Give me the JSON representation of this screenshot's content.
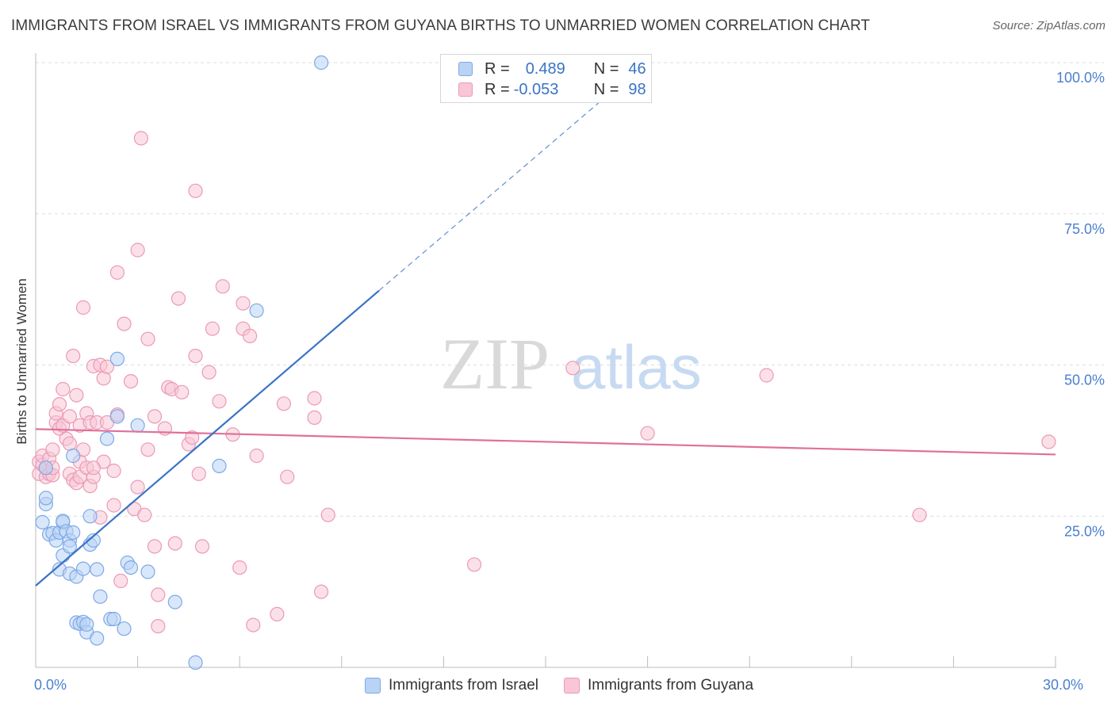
{
  "header": {
    "title": "IMMIGRANTS FROM ISRAEL VS IMMIGRANTS FROM GUYANA BIRTHS TO UNMARRIED WOMEN CORRELATION CHART",
    "source": "Source: ZipAtlas.com"
  },
  "watermark": {
    "zip": "ZIP",
    "atlas": "atlas"
  },
  "stats": {
    "israel": {
      "r_label": "R =",
      "r_value": "0.489",
      "n_label": "N =",
      "n_value": "46"
    },
    "guyana": {
      "r_label": "R =",
      "r_value": "-0.053",
      "n_label": "N =",
      "n_value": "98"
    }
  },
  "legend": {
    "israel": "Immigrants from Israel",
    "guyana": "Immigrants from Guyana"
  },
  "colors": {
    "israel_fill": "#b9d3f5",
    "israel_stroke": "#7ea9e6",
    "israel_line": "#3b73c7",
    "guyana_fill": "#f8c6d6",
    "guyana_stroke": "#ec9ab5",
    "guyana_line": "#e0709a",
    "tick_text": "#4a7fd0",
    "grid": "#dddddd"
  },
  "chart_data": {
    "type": "scatter",
    "title": "IMMIGRANTS FROM ISRAEL VS IMMIGRANTS FROM GUYANA BIRTHS TO UNMARRIED WOMEN CORRELATION CHART",
    "xlabel": "",
    "ylabel": "Births to Unmarried Women",
    "xlim": [
      0,
      30
    ],
    "ylim": [
      0,
      100
    ],
    "y_ticks": [
      {
        "value": 25,
        "label": "25.0%"
      },
      {
        "value": 50,
        "label": "50.0%"
      },
      {
        "value": 75,
        "label": "75.0%"
      },
      {
        "value": 100,
        "label": "100.0%"
      }
    ],
    "x_tick_labels": [
      {
        "value": 0,
        "label": "0.0%"
      },
      {
        "value": 30,
        "label": "30.0%"
      }
    ],
    "x_minor_ticks": [
      3,
      6,
      9,
      12,
      15,
      18,
      21,
      24,
      27,
      30
    ],
    "series": [
      {
        "name": "Immigrants from Israel",
        "r": 0.489,
        "n": 46,
        "trend": {
          "x0": 0,
          "y0": 13.5,
          "x1": 10.1,
          "y1": 62.3
        },
        "trend_dashed": {
          "x0": 10.1,
          "y0": 62.3,
          "x1": 16.8,
          "y1": 94.5
        },
        "points": [
          [
            0.2,
            24.0
          ],
          [
            0.3,
            27.0
          ],
          [
            0.3,
            28.0
          ],
          [
            0.4,
            22.0
          ],
          [
            0.5,
            22.2
          ],
          [
            0.6,
            21.0
          ],
          [
            0.7,
            16.2
          ],
          [
            0.7,
            22.3
          ],
          [
            0.8,
            24.0
          ],
          [
            0.8,
            24.2
          ],
          [
            0.8,
            18.5
          ],
          [
            0.9,
            22.5
          ],
          [
            1.0,
            21.0
          ],
          [
            1.0,
            15.5
          ],
          [
            1.0,
            20.0
          ],
          [
            1.1,
            35.0
          ],
          [
            1.1,
            22.3
          ],
          [
            1.2,
            15.0
          ],
          [
            1.2,
            7.4
          ],
          [
            1.3,
            7.2
          ],
          [
            1.4,
            7.5
          ],
          [
            1.4,
            16.3
          ],
          [
            1.5,
            5.8
          ],
          [
            1.5,
            7.1
          ],
          [
            1.6,
            25.0
          ],
          [
            1.6,
            20.3
          ],
          [
            1.7,
            21.0
          ],
          [
            1.8,
            4.8
          ],
          [
            1.8,
            16.2
          ],
          [
            1.9,
            11.7
          ],
          [
            2.1,
            37.8
          ],
          [
            2.2,
            8.0
          ],
          [
            2.3,
            8.0
          ],
          [
            2.4,
            51.0
          ],
          [
            2.4,
            41.5
          ],
          [
            2.6,
            6.4
          ],
          [
            2.7,
            17.3
          ],
          [
            2.8,
            16.5
          ],
          [
            3.0,
            40.0
          ],
          [
            3.3,
            15.8
          ],
          [
            4.1,
            10.8
          ],
          [
            4.7,
            0.8
          ],
          [
            5.4,
            33.3
          ],
          [
            6.5,
            59.0
          ],
          [
            8.4,
            100.0
          ],
          [
            0.3,
            33.0
          ]
        ]
      },
      {
        "name": "Immigrants from Guyana",
        "r": -0.053,
        "n": 98,
        "trend": {
          "x0": 0,
          "y0": 39.4,
          "x1": 30,
          "y1": 35.2
        },
        "points": [
          [
            0.1,
            34.0
          ],
          [
            0.1,
            32.0
          ],
          [
            0.2,
            33.5
          ],
          [
            0.2,
            35.0
          ],
          [
            0.3,
            31.5
          ],
          [
            0.3,
            33.0
          ],
          [
            0.4,
            32.0
          ],
          [
            0.4,
            34.5
          ],
          [
            0.5,
            31.8
          ],
          [
            0.5,
            33.0
          ],
          [
            0.5,
            36.0
          ],
          [
            0.6,
            40.5
          ],
          [
            0.6,
            42.0
          ],
          [
            0.7,
            39.5
          ],
          [
            0.7,
            43.5
          ],
          [
            0.8,
            40.0
          ],
          [
            0.8,
            46.0
          ],
          [
            0.9,
            37.8
          ],
          [
            1.0,
            41.5
          ],
          [
            1.0,
            37.0
          ],
          [
            1.0,
            32.0
          ],
          [
            1.1,
            51.5
          ],
          [
            1.1,
            31.0
          ],
          [
            1.2,
            30.5
          ],
          [
            1.2,
            45.0
          ],
          [
            1.3,
            34.0
          ],
          [
            1.3,
            40.0
          ],
          [
            1.3,
            31.5
          ],
          [
            1.4,
            36.0
          ],
          [
            1.4,
            59.5
          ],
          [
            1.5,
            42.0
          ],
          [
            1.5,
            33.0
          ],
          [
            1.6,
            40.5
          ],
          [
            1.6,
            30.0
          ],
          [
            1.7,
            49.8
          ],
          [
            1.7,
            31.5
          ],
          [
            1.8,
            40.5
          ],
          [
            1.9,
            50.0
          ],
          [
            1.9,
            24.8
          ],
          [
            2.0,
            34.0
          ],
          [
            2.0,
            47.8
          ],
          [
            2.1,
            49.7
          ],
          [
            2.1,
            40.5
          ],
          [
            2.3,
            26.8
          ],
          [
            2.3,
            32.5
          ],
          [
            2.4,
            41.8
          ],
          [
            2.4,
            65.3
          ],
          [
            2.5,
            14.3
          ],
          [
            2.6,
            56.8
          ],
          [
            2.8,
            47.3
          ],
          [
            2.9,
            26.2
          ],
          [
            3.0,
            29.8
          ],
          [
            3.0,
            69.0
          ],
          [
            3.1,
            87.5
          ],
          [
            3.2,
            25.2
          ],
          [
            3.3,
            36.0
          ],
          [
            3.3,
            54.3
          ],
          [
            3.5,
            41.5
          ],
          [
            3.5,
            20.0
          ],
          [
            3.6,
            6.8
          ],
          [
            3.8,
            39.5
          ],
          [
            3.9,
            46.3
          ],
          [
            4.0,
            46.0
          ],
          [
            4.1,
            20.5
          ],
          [
            4.2,
            61.0
          ],
          [
            4.3,
            45.5
          ],
          [
            4.5,
            36.9
          ],
          [
            4.6,
            38.0
          ],
          [
            4.7,
            78.8
          ],
          [
            4.7,
            51.5
          ],
          [
            4.8,
            32.0
          ],
          [
            4.9,
            20.0
          ],
          [
            5.1,
            48.8
          ],
          [
            5.2,
            56.0
          ],
          [
            5.4,
            44.0
          ],
          [
            5.5,
            63.0
          ],
          [
            5.8,
            38.5
          ],
          [
            6.0,
            16.5
          ],
          [
            6.1,
            60.2
          ],
          [
            6.1,
            56.0
          ],
          [
            6.3,
            54.8
          ],
          [
            6.4,
            7.0
          ],
          [
            6.5,
            35.0
          ],
          [
            7.1,
            8.8
          ],
          [
            7.3,
            43.6
          ],
          [
            7.4,
            31.5
          ],
          [
            8.2,
            44.5
          ],
          [
            8.2,
            41.3
          ],
          [
            8.4,
            12.5
          ],
          [
            8.6,
            25.2
          ],
          [
            12.9,
            17.0
          ],
          [
            15.8,
            49.5
          ],
          [
            18.0,
            38.7
          ],
          [
            21.5,
            48.3
          ],
          [
            26.0,
            25.2
          ],
          [
            29.8,
            37.3
          ],
          [
            1.7,
            33.0
          ],
          [
            3.6,
            12.0
          ]
        ]
      }
    ]
  }
}
